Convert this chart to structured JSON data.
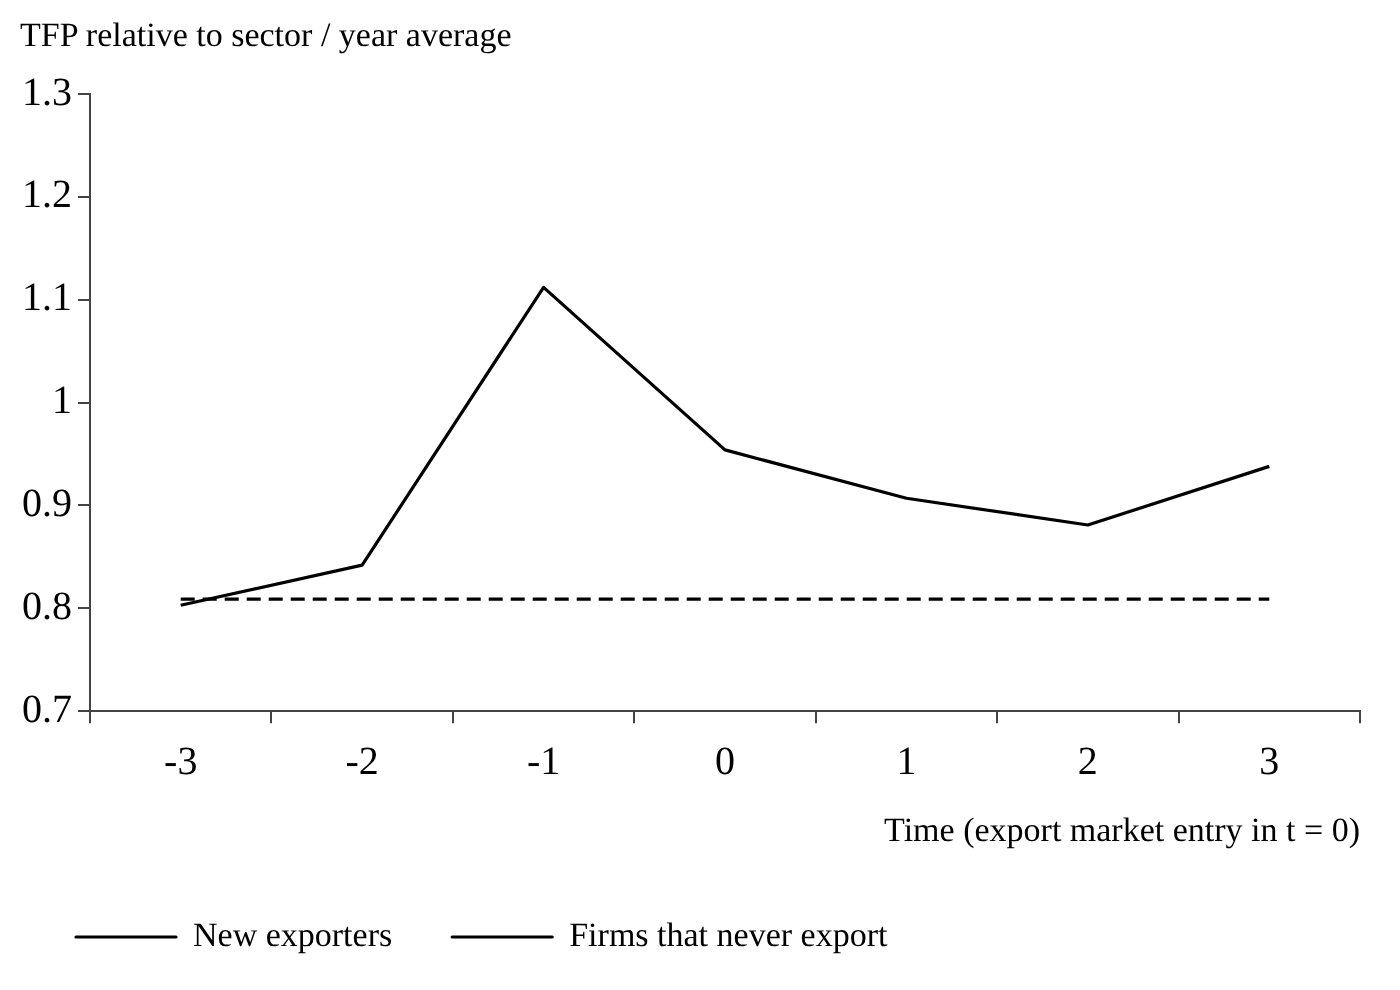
{
  "chart_data": {
    "type": "line",
    "ylabel": "TFP relative to sector / year average",
    "xlabel": "Time (export market entry in t = 0)",
    "categories": [
      "-3",
      "-2",
      "-1",
      "0",
      "1",
      "2",
      "3"
    ],
    "series": [
      {
        "name": "New exporters",
        "color": "#000000",
        "values": [
          0.803,
          0.842,
          1.112,
          0.954,
          0.907,
          0.881,
          0.938
        ],
        "line_style": "solid"
      },
      {
        "name": "Firms that never export",
        "color": "#000000",
        "values": [
          0.809,
          0.809,
          0.809,
          0.809,
          0.809,
          0.809,
          0.809
        ],
        "line_style": "dashed"
      }
    ],
    "ylim": [
      0.7,
      1.3
    ],
    "yticks": [
      0.7,
      0.8,
      0.9,
      1,
      1.1,
      1.2,
      1.3
    ],
    "grid": false,
    "legend": "bottom",
    "marker": "none"
  }
}
